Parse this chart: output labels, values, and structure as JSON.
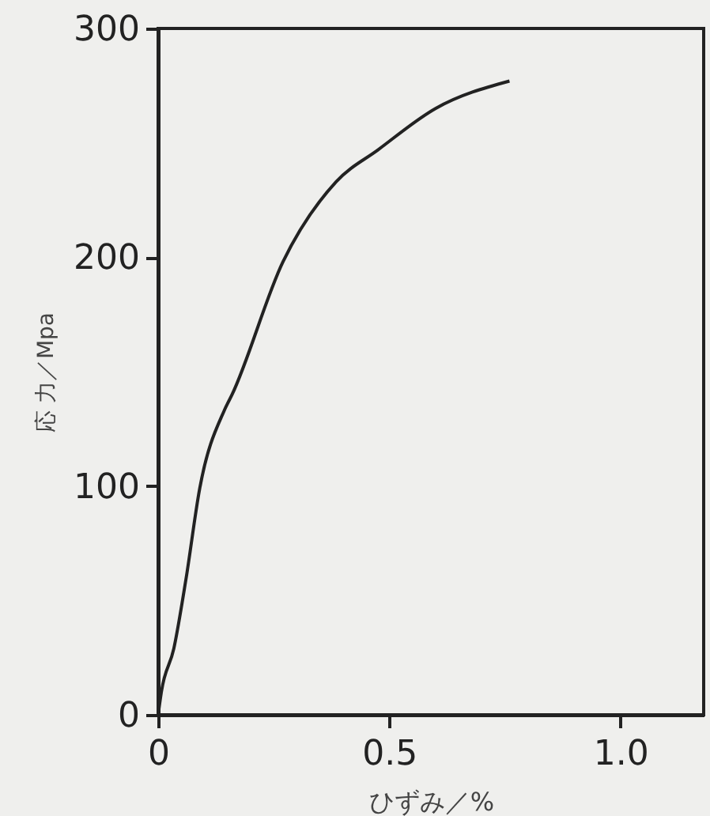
{
  "chart_data": {
    "type": "line",
    "xlabel": "ひずみ／%",
    "ylabel": "応 力／Mpa",
    "x": [
      0,
      0.007,
      0.034,
      0.06,
      0.09,
      0.143,
      0.16,
      0.27,
      0.385,
      0.476,
      0.6,
      0.76
    ],
    "series": [
      {
        "color": "#222222",
        "values": [
          0,
          10,
          29,
          59,
          99,
          133,
          140,
          198,
          233,
          247,
          265,
          277
        ]
      }
    ],
    "xlim": [
      0,
      1.18
    ],
    "xticks": [
      0,
      0.5,
      {
        "value": 1.0,
        "label": "1.0"
      }
    ],
    "ylim": [
      0,
      300
    ],
    "yticks": [
      0,
      100,
      200,
      300
    ],
    "grid": false,
    "marker": "none",
    "line_style": "solid"
  }
}
